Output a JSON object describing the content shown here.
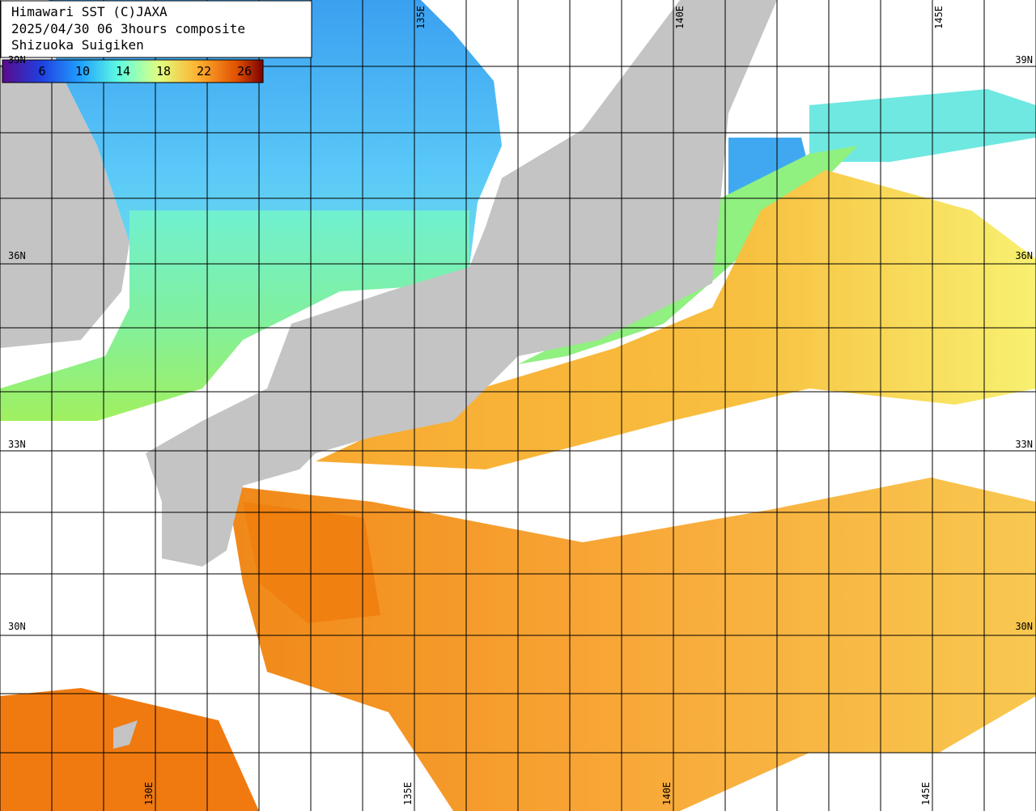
{
  "header": {
    "lines": [
      "Himawari SST (C)JAXA",
      "2025/04/30 06 3hours composite",
      "Shizuoka Suigiken"
    ]
  },
  "legend": {
    "labels": [
      "6",
      "10",
      "14",
      "18",
      "22",
      "26"
    ]
  },
  "grid": {
    "latitude_labels": [
      "39N",
      "36N",
      "33N",
      "30N"
    ],
    "longitude_labels": [
      "130E",
      "135E",
      "140E",
      "145E"
    ]
  }
}
